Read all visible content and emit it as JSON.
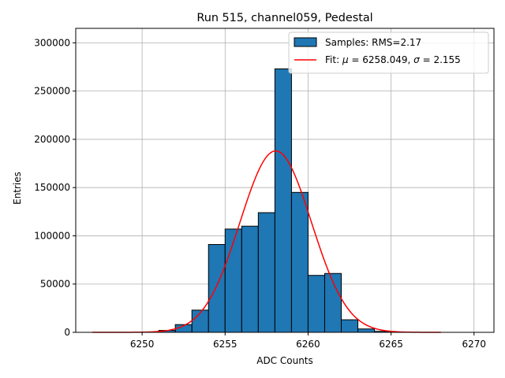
{
  "chart_data": {
    "type": "bar",
    "title": "Run 515, channel059, Pedestal",
    "xlabel": "ADC Counts",
    "ylabel": "Entries",
    "xlim": [
      6246.0,
      6271.2
    ],
    "ylim": [
      0,
      315000
    ],
    "xticks": [
      6250,
      6255,
      6260,
      6265,
      6270
    ],
    "yticks": [
      0,
      50000,
      100000,
      150000,
      200000,
      250000,
      300000
    ],
    "grid": true,
    "legend_position": "top-right",
    "histogram": {
      "name": "Samples: RMS=2.17",
      "color": "#1f77b4",
      "edgecolor": "#000000",
      "bin_edges": [
        6251,
        6252,
        6253,
        6254,
        6255,
        6256,
        6257,
        6258,
        6259,
        6260,
        6261,
        6262,
        6263,
        6264,
        6265
      ],
      "values": [
        2000,
        8000,
        23000,
        91000,
        107000,
        110000,
        124000,
        273000,
        145000,
        59000,
        61000,
        13000,
        3500,
        1000
      ]
    },
    "fit": {
      "name_prefix": "Fit: ",
      "mu_symbol": "μ",
      "mu_text": " = 6258.049, ",
      "sigma_symbol": "σ",
      "sigma_text": " = 2.155",
      "color": "#ff0000",
      "mu": 6258.049,
      "sigma": 2.155,
      "amplitude": 188000,
      "x_range": [
        6247,
        6268
      ]
    }
  }
}
